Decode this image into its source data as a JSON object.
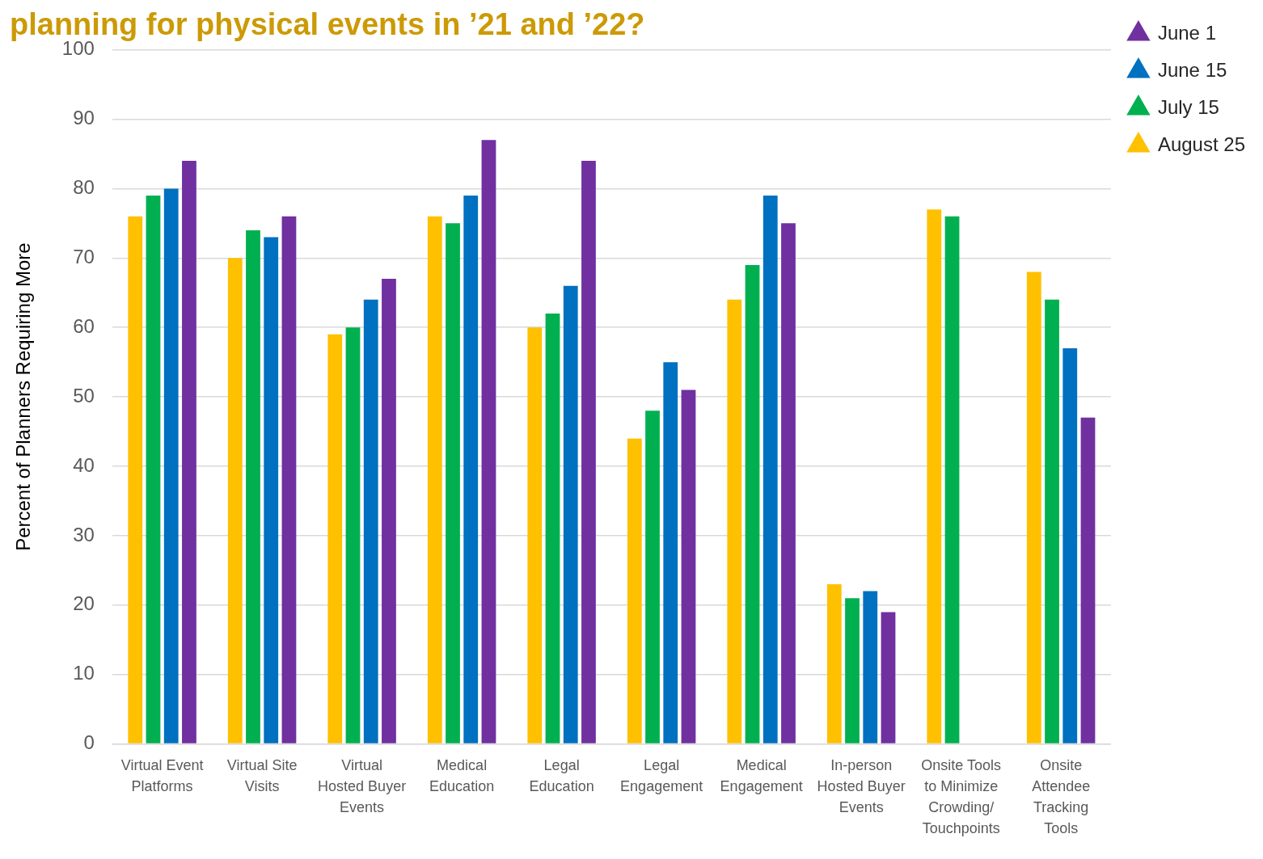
{
  "chart_data": {
    "type": "bar",
    "title": "planning for physical events in ’21 and ’22?",
    "ylabel": "Percent of Planners Requiring More",
    "categories": [
      "Virtual Event Platforms",
      "Virtual Site Visits",
      "Virtual Hosted Buyer Events",
      "Medical Education",
      "Legal Education",
      "Legal Engagement",
      "Medical Engagement",
      "In-person Hosted Buyer Events",
      "Onsite Tools to Minimize Crowding/ Touchpoints",
      "Onsite Attendee Tracking Tools"
    ],
    "series": [
      {
        "name": "August 25",
        "color": "#ffc000",
        "values": [
          76,
          70,
          59,
          76,
          60,
          44,
          64,
          23,
          77,
          68
        ]
      },
      {
        "name": "July 15",
        "color": "#00b050",
        "values": [
          79,
          74,
          60,
          75,
          62,
          48,
          69,
          21,
          76,
          64
        ]
      },
      {
        "name": "June 15",
        "color": "#0070c0",
        "values": [
          80,
          73,
          64,
          79,
          66,
          55,
          79,
          22,
          null,
          57
        ]
      },
      {
        "name": "June 1",
        "color": "#7030a0",
        "values": [
          84,
          76,
          67,
          87,
          84,
          51,
          75,
          19,
          null,
          47
        ]
      }
    ],
    "ylim": [
      0,
      100
    ],
    "yticks": [
      0,
      10,
      20,
      30,
      40,
      50,
      60,
      70,
      80,
      90,
      100
    ],
    "grid": "y",
    "legend": "top right"
  }
}
